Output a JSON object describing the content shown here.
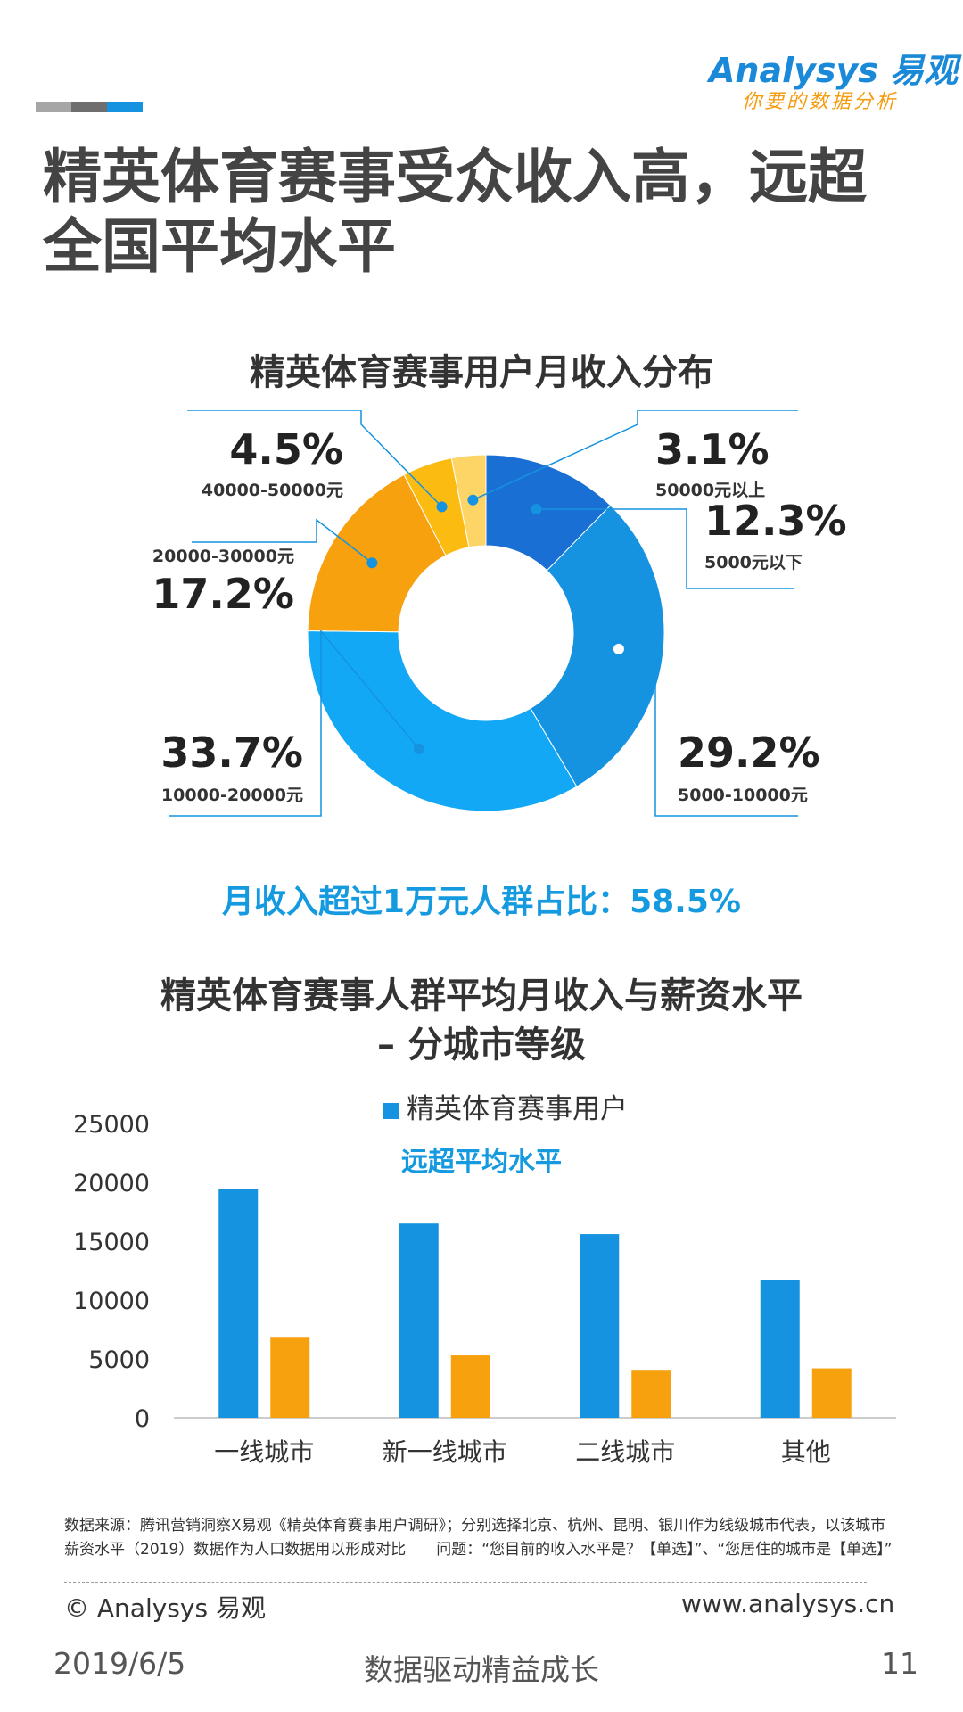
{
  "brand": {
    "name": "Analysys 易观",
    "tagline": "你要的数据分析"
  },
  "page_title": "精英体育赛事受众收入高，远超全国平均水平",
  "highlight_text": "月收入超过1万元人群占比：58.5%",
  "annotation": "远超平均水平",
  "footnote": "数据来源：腾讯营销洞察X易观《精英体育赛事用户调研》；分别选择北京、杭州、昆明、银川作为线级城市代表，以该城市薪资水平（2019）数据作为人口数据用以形成对比　　问题：“您目前的收入水平是？【单选】”、“您居住的城市是【单选】”",
  "copyright": "© Analysys 易观",
  "website": "www.analysys.cn",
  "footer": {
    "date": "2019/6/5",
    "slogan": "数据驱动精益成长",
    "page": "11"
  },
  "colors": {
    "blue_dark": "#1a6fd4",
    "blue": "#1592e0",
    "blue_light": "#12a8f5",
    "orange": "#f7a10f",
    "yellow": "#fbbb10",
    "yellow_light": "#fcd566",
    "accent": "#159ae0"
  },
  "chart_data": [
    {
      "type": "pie",
      "title": "精英体育赛事用户月收入分布",
      "slices": [
        {
          "label": "5000元以下",
          "value": 12.3,
          "display": "12.3%"
        },
        {
          "label": "5000-10000元",
          "value": 29.2,
          "display": "29.2%"
        },
        {
          "label": "10000-20000元",
          "value": 33.7,
          "display": "33.7%"
        },
        {
          "label": "20000-30000元",
          "value": 17.2,
          "display": "17.2%"
        },
        {
          "label": "40000-50000元",
          "value": 4.5,
          "display": "4.5%"
        },
        {
          "label": "50000元以上",
          "value": 3.1,
          "display": "3.1%"
        }
      ]
    },
    {
      "type": "bar",
      "title": "精英体育赛事人群平均月收入与薪资水平",
      "subtitle": "– 分城市等级",
      "categories": [
        "一线城市",
        "新一线城市",
        "二线城市",
        "其他"
      ],
      "series": [
        {
          "name": "精英体育赛事用户",
          "values": [
            19400,
            16500,
            15600,
            11700
          ]
        },
        {
          "values": [
            6800,
            5300,
            4000,
            4200
          ]
        }
      ],
      "yticks": [
        0,
        5000,
        10000,
        15000,
        20000,
        25000
      ],
      "ylim": [
        0,
        25000
      ]
    }
  ]
}
